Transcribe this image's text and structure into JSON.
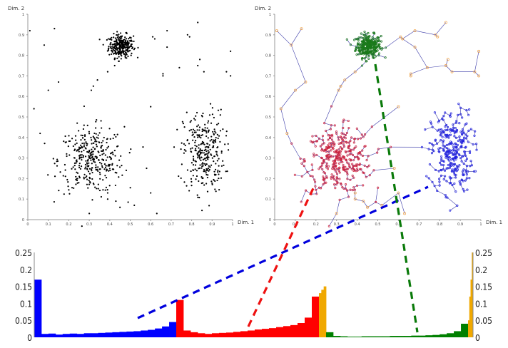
{
  "chart_data": [
    {
      "type": "scatter",
      "xlabel": "Dim. 1",
      "ylabel": "Dim. 2",
      "xlim": [
        0,
        1
      ],
      "ylim": [
        0,
        1
      ],
      "xticks": [
        "0",
        "0.1",
        "0.2",
        "0.3",
        "0.4",
        "0.5",
        "0.6",
        "0.7",
        "0.8",
        "0.9",
        "1"
      ],
      "yticks": [
        "0",
        "0.1",
        "0.2",
        "0.3",
        "0.4",
        "0.5",
        "0.6",
        "0.7",
        "0.8",
        "0.9",
        "1"
      ],
      "point_color": "#000000",
      "clusters": [
        {
          "center": [
            0.455,
            0.845
          ],
          "spread": [
            0.03,
            0.028
          ],
          "count": 300
        },
        {
          "center": [
            0.31,
            0.29
          ],
          "spread": [
            0.08,
            0.08
          ],
          "count": 350
        },
        {
          "center": [
            0.86,
            0.33
          ],
          "spread": [
            0.05,
            0.1
          ],
          "count": 300
        }
      ],
      "outliers": [
        [
          0.01,
          0.92
        ],
        [
          0.13,
          0.93
        ],
        [
          0.08,
          0.85
        ],
        [
          0.1,
          0.63
        ],
        [
          0.03,
          0.54
        ],
        [
          0.15,
          0.67
        ],
        [
          0.39,
          0.72
        ],
        [
          0.34,
          0.68
        ],
        [
          0.32,
          0.65
        ],
        [
          0.31,
          0.63
        ],
        [
          0.61,
          0.89
        ],
        [
          0.62,
          0.88
        ],
        [
          0.68,
          0.92
        ],
        [
          0.68,
          0.84
        ],
        [
          0.78,
          0.9
        ],
        [
          0.79,
          0.89
        ],
        [
          0.83,
          0.96
        ],
        [
          0.84,
          0.78
        ],
        [
          0.83,
          0.75
        ],
        [
          0.86,
          0.72
        ],
        [
          0.74,
          0.74
        ],
        [
          0.66,
          0.7
        ],
        [
          0.66,
          0.71
        ],
        [
          0.99,
          0.82
        ],
        [
          0.97,
          0.72
        ],
        [
          0.99,
          0.7
        ],
        [
          0.6,
          0.55
        ],
        [
          0.3,
          0.03
        ],
        [
          0.45,
          0.06
        ],
        [
          0.63,
          0.03
        ],
        [
          0.52,
          0.07
        ],
        [
          0.6,
          0.13
        ],
        [
          0.58,
          0.25
        ],
        [
          0.06,
          0.42
        ],
        [
          0.43,
          0.09
        ],
        [
          0.39,
          0.1
        ],
        [
          0.39,
          0.13
        ]
      ]
    },
    {
      "type": "scatter",
      "xlabel": "Dim. 1",
      "ylabel": "Dim. 2",
      "xlim": [
        0,
        1
      ],
      "ylim": [
        0,
        1
      ],
      "xticks": [
        "0",
        "0.1",
        "0.2",
        "0.3",
        "0.4",
        "0.5",
        "0.6",
        "0.7",
        "0.8",
        "0.9",
        "1"
      ],
      "yticks": [
        "0",
        "0.1",
        "0.2",
        "0.3",
        "0.4",
        "0.5",
        "0.6",
        "0.7",
        "0.8",
        "0.9",
        "1"
      ],
      "note_structure": "spanning tree",
      "edge_color": "#3a3aa8",
      "cluster_colors": [
        "#1a7a1a",
        "#d0203a",
        "#2020e0"
      ],
      "outlier_color": "#f0a040"
    },
    {
      "type": "bar",
      "ylim": [
        0,
        0.25
      ],
      "yticks": [
        "0",
        "0.05",
        "0.1",
        "0.15",
        "0.2",
        "0.25"
      ],
      "segments": [
        {
          "color": "#0000ff",
          "values": [
            0.17,
            0.01,
            0.011,
            0.008,
            0.01,
            0.011,
            0.01,
            0.012,
            0.012,
            0.013,
            0.014,
            0.015,
            0.016,
            0.017,
            0.018,
            0.02,
            0.022,
            0.026,
            0.032,
            0.045
          ]
        },
        {
          "color": "#ff0000",
          "values": [
            0.11,
            0.02,
            0.015,
            0.012,
            0.01,
            0.012,
            0.013,
            0.014,
            0.016,
            0.018,
            0.02,
            0.023,
            0.025,
            0.027,
            0.03,
            0.033,
            0.036,
            0.042,
            0.058,
            0.12
          ]
        },
        {
          "color": "#f0a800",
          "values": [
            0.13,
            0.14,
            0.15
          ]
        },
        {
          "color": "#008000",
          "values": [
            0.015,
            0.004,
            0.003,
            0.002,
            0.002,
            0.003,
            0.003,
            0.003,
            0.003,
            0.004,
            0.004,
            0.004,
            0.005,
            0.005,
            0.006,
            0.007,
            0.009,
            0.012,
            0.018,
            0.04
          ]
        },
        {
          "color": "#f0a800",
          "values": [
            0.05,
            0.12,
            0.17,
            0.25
          ]
        }
      ]
    }
  ],
  "connectors": [
    {
      "color": "#0000dd"
    },
    {
      "color": "#ee1111"
    },
    {
      "color": "#0a7a0a"
    }
  ]
}
